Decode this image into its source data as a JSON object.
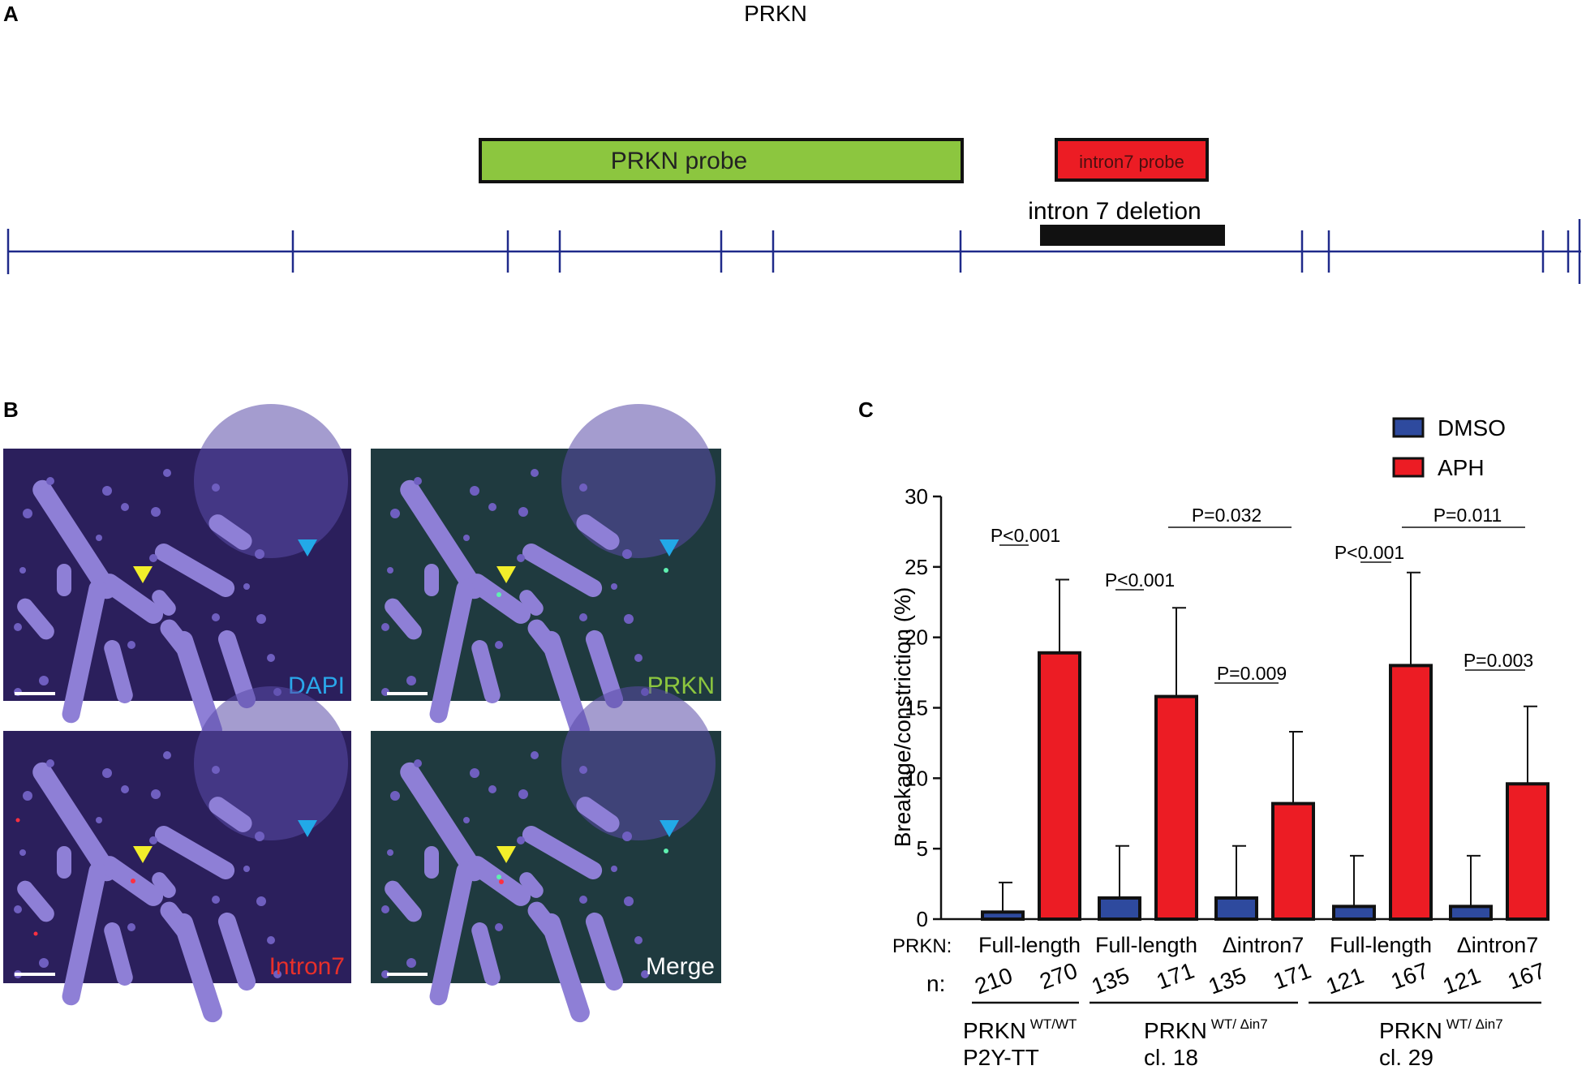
{
  "panels": {
    "a": {
      "letter": "A",
      "gene_title": "PRKN",
      "green_probe_label": "PRKN probe",
      "red_probe_label": "intron7 probe",
      "deletion_label": "intron 7 deletion",
      "colors": {
        "line": "#1f2a8a",
        "green_probe": "#8cc63f",
        "red_probe": "#ec1c24",
        "deletion": "#111111"
      }
    },
    "b": {
      "letter": "B",
      "images": [
        {
          "label": "DAPI",
          "label_color": "#2aa7ea",
          "tint": "#2b1f5c"
        },
        {
          "label": "PRKN",
          "label_color": "#8cc63f",
          "tint": "#1f3a3f"
        },
        {
          "label": "Intron7",
          "label_color": "#e8302a",
          "tint": "#2b1f5c"
        },
        {
          "label": "Merge",
          "label_color": "#ffffff",
          "tint": "#1f3a3f"
        }
      ],
      "arrow_colors": {
        "yellow": "#f2ee2a",
        "blue": "#22a9e8"
      }
    },
    "c": {
      "letter": "C",
      "genotype_row_label": "PRKN:",
      "n_row_label": "n:",
      "genotypes": [
        {
          "main": "PRKN",
          "sup": "WT/WT",
          "sub": "P2Y-TT"
        },
        {
          "main": "PRKN",
          "sup": "WT/ Δin7",
          "sub": "cl. 18"
        },
        {
          "main": "PRKN",
          "sup": "WT/ Δin7",
          "sub": "cl. 29"
        }
      ],
      "significance": [
        {
          "text": "P<0.001"
        },
        {
          "text": "P<0.001"
        },
        {
          "text": "P=0.009"
        },
        {
          "text": "P=0.032"
        },
        {
          "text": "P<0.001"
        },
        {
          "text": "P=0.003"
        },
        {
          "text": "P=0.011"
        }
      ]
    }
  },
  "chart_data": {
    "type": "bar",
    "title": "",
    "xlabel": "",
    "ylabel": "Breakage/constriction (%)",
    "ylim": [
      0,
      30
    ],
    "yticks": [
      0,
      5,
      10,
      15,
      20,
      25,
      30
    ],
    "categories": [
      "Full-length",
      "Full-length",
      "Δintron7",
      "Full-length",
      "Δintron7"
    ],
    "series": [
      {
        "name": "DMSO",
        "color": "#2e4a9e",
        "values": [
          0.5,
          1.5,
          1.5,
          0.9,
          0.9
        ],
        "error": [
          2.1,
          3.7,
          3.7,
          3.6,
          3.6
        ],
        "n": [
          "210",
          "135",
          "135",
          "121",
          "121"
        ]
      },
      {
        "name": "APH",
        "color": "#ec1c24",
        "values": [
          18.9,
          15.8,
          8.2,
          18.0,
          9.6
        ],
        "error": [
          5.2,
          6.3,
          5.1,
          6.6,
          5.5
        ],
        "n": [
          "270",
          "171",
          "171",
          "167",
          "167"
        ]
      }
    ],
    "legend_position": "top-right",
    "grid": false
  }
}
